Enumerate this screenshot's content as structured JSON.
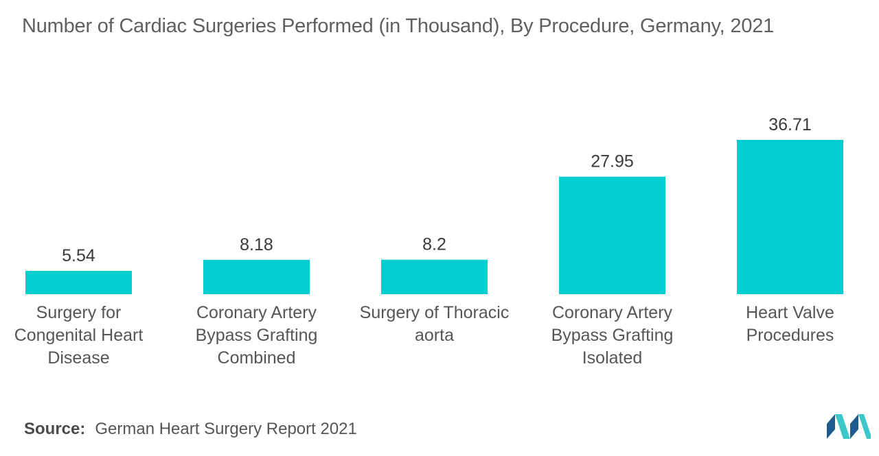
{
  "title": "Number of Cardiac Surgeries Performed (in Thousand), By Procedure, Germany, 2021",
  "source": {
    "label": "Source:",
    "text": "German Heart Surgery Report 2021"
  },
  "logo_icon": "mordor-intelligence-logo",
  "colors": {
    "bar": "#00CED1",
    "logo_dark": "#1F5A8E",
    "logo_light": "#3CC8C8"
  },
  "chart_data": {
    "type": "bar",
    "title": "Number of Cardiac Surgeries Performed (in Thousand), By Procedure, Germany, 2021",
    "categories": [
      [
        "Surgery for",
        "Congenital Heart",
        "Disease"
      ],
      [
        "Coronary Artery",
        "Bypass Grafting",
        "Combined"
      ],
      [
        "Surgery of Thoracic",
        "aorta"
      ],
      [
        "Coronary Artery",
        "Bypass Grafting",
        "Isolated"
      ],
      [
        "Heart Valve",
        "Procedures"
      ]
    ],
    "values": [
      5.54,
      8.18,
      8.2,
      27.95,
      36.71
    ],
    "value_labels": [
      "5.54",
      "8.18",
      "8.2",
      "27.95",
      "36.71"
    ],
    "ylim": [
      0,
      36.71
    ],
    "grid": false,
    "legend": "none"
  }
}
